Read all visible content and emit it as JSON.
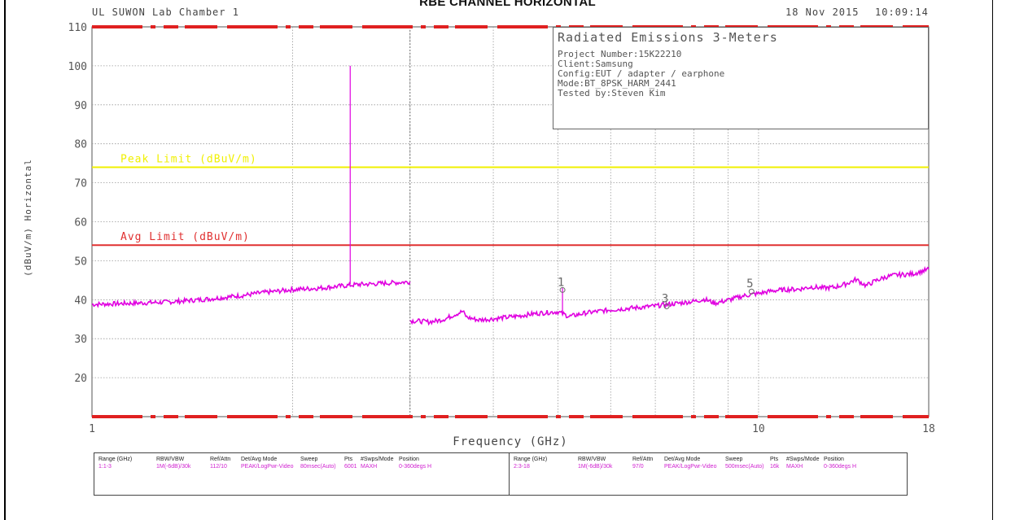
{
  "page_title": "RBE CHANNEL HORIZONTAL",
  "header": {
    "lab": "UL SUWON Lab Chamber 1",
    "date": "18 Nov 2015",
    "time": "10:09:14"
  },
  "info_box": {
    "title": "Radiated Emissions 3-Meters",
    "project": "Project Number:15K22210",
    "client": "Client:Samsung",
    "config": "Config:EUT / adapter / earphone",
    "mode": "Mode:BT_8PSK_HARM_2441",
    "tested_by": "Tested by:Steven Kim"
  },
  "chart_data": {
    "type": "line",
    "title": "",
    "xlabel": "Frequency (GHz)",
    "ylabel": "(dBuV/m) Horizontal",
    "x_scale": "log",
    "xlim": [
      1,
      18
    ],
    "ylim": [
      10,
      110
    ],
    "y_ticks": [
      20,
      30,
      40,
      50,
      60,
      70,
      80,
      90,
      100,
      110
    ],
    "x_tick_labels": [
      {
        "x": 1,
        "label": "1"
      },
      {
        "x": 10,
        "label": "10"
      },
      {
        "x": 18,
        "label": "18"
      }
    ],
    "x_minor_grid": [
      2,
      3,
      4,
      5,
      6,
      7,
      8,
      9
    ],
    "limit_lines": [
      {
        "name": "Peak Limit (dBuV/m)",
        "value": 74,
        "color": "#f0f000"
      },
      {
        "name": "Avg Limit (dBuV/m)",
        "value": 54,
        "color": "#e03030"
      }
    ],
    "series": [
      {
        "color": "#e000e0",
        "segments": [
          [
            [
              1.0,
              38.8
            ],
            [
              1.1,
              39.0
            ],
            [
              1.2,
              39.2
            ],
            [
              1.3,
              39.4
            ],
            [
              1.4,
              39.8
            ],
            [
              1.5,
              40.2
            ],
            [
              1.6,
              40.7
            ],
            [
              1.7,
              41.2
            ],
            [
              1.8,
              41.8
            ],
            [
              1.9,
              42.2
            ],
            [
              2.0,
              42.6
            ],
            [
              2.2,
              43.0
            ],
            [
              2.4,
              43.6
            ],
            [
              2.5,
              43.9
            ],
            [
              2.6,
              44.0
            ],
            [
              2.8,
              44.3
            ],
            [
              3.0,
              44.6
            ]
          ],
          [
            [
              3.0,
              34.6
            ],
            [
              3.1,
              34.5
            ],
            [
              3.2,
              34.3
            ],
            [
              3.3,
              34.6
            ],
            [
              3.4,
              35.2
            ],
            [
              3.5,
              36.2
            ],
            [
              3.6,
              37.0
            ],
            [
              3.65,
              35.5
            ],
            [
              3.8,
              34.8
            ],
            [
              4.0,
              35.1
            ],
            [
              4.2,
              35.5
            ],
            [
              4.4,
              35.9
            ],
            [
              4.6,
              36.4
            ],
            [
              4.8,
              36.7
            ],
            [
              5.0,
              36.9
            ],
            [
              5.2,
              35.7
            ],
            [
              5.5,
              36.6
            ],
            [
              6.0,
              37.4
            ],
            [
              6.5,
              37.9
            ],
            [
              7.0,
              38.4
            ],
            [
              7.5,
              39.0
            ],
            [
              8.0,
              39.6
            ],
            [
              8.3,
              40.1
            ],
            [
              8.6,
              39.1
            ],
            [
              9.0,
              39.9
            ],
            [
              9.5,
              41.0
            ],
            [
              10.0,
              41.6
            ],
            [
              10.5,
              42.3
            ],
            [
              11.0,
              42.6
            ],
            [
              11.5,
              42.7
            ],
            [
              12.0,
              43.3
            ],
            [
              12.5,
              43.0
            ],
            [
              13.0,
              43.2
            ],
            [
              13.5,
              44.0
            ],
            [
              14.0,
              45.2
            ],
            [
              14.5,
              43.6
            ],
            [
              15.0,
              44.9
            ],
            [
              15.5,
              45.8
            ],
            [
              16.0,
              46.3
            ],
            [
              17.0,
              46.6
            ],
            [
              18.0,
              47.8
            ]
          ]
        ],
        "spikes": [
          {
            "x": 2.44,
            "y_from": 44.0,
            "y_to": 100.0
          },
          {
            "x": 5.08,
            "y_from": 36.6,
            "y_to": 43.0
          }
        ]
      }
    ],
    "markers": [
      {
        "label": "1",
        "x": 5.08,
        "y": 42.5
      },
      {
        "label": "3",
        "x": 7.28,
        "y": 38.3
      },
      {
        "label": "5",
        "x": 9.76,
        "y": 42.1
      }
    ]
  },
  "footer_table": {
    "headers": [
      "Range (GHz)",
      "RBW/VBW",
      "Ref/Attn",
      "Det/Avg Mode",
      "Sweep",
      "Pts",
      "#Swps/Mode",
      "Position"
    ],
    "rows": [
      [
        "1:1-3",
        "1M(-6dB)/30k",
        "112/10",
        "PEAK/LogPwr-Video",
        "80msec(Auto)",
        "6001",
        "MAXH",
        "0-360degs H"
      ],
      [
        "2:3-18",
        "1M(-6dB)/30k",
        "97/0",
        "PEAK/LogPwr-Video",
        "500msec(Auto)",
        "16k",
        "MAXH",
        "0-360degs H"
      ]
    ]
  }
}
